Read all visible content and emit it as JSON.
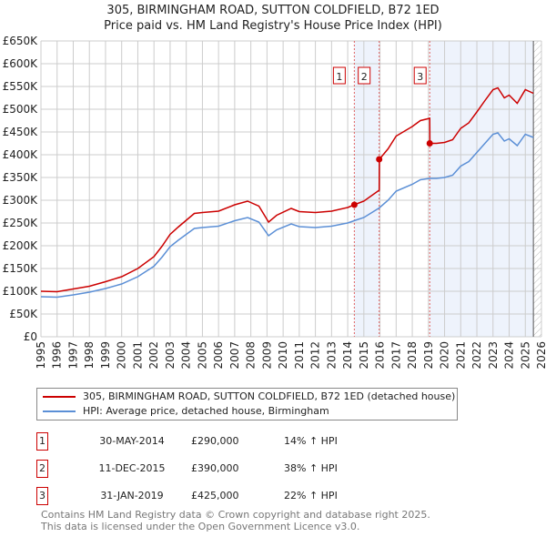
{
  "title": "305, BIRMINGHAM ROAD, SUTTON COLDFIELD, B72 1ED",
  "subtitle": "Price paid vs. HM Land Registry's House Price Index (HPI)",
  "chart_data": {
    "type": "line",
    "ylim": [
      0,
      650000
    ],
    "xlim": [
      1995,
      2026
    ],
    "yticks": [
      0,
      50000,
      100000,
      150000,
      200000,
      250000,
      300000,
      350000,
      400000,
      450000,
      500000,
      550000,
      600000,
      650000
    ],
    "ytick_labels": [
      "£0",
      "£50K",
      "£100K",
      "£150K",
      "£200K",
      "£250K",
      "£300K",
      "£350K",
      "£400K",
      "£450K",
      "£500K",
      "£550K",
      "£600K",
      "£650K"
    ],
    "xticks": [
      1995,
      1996,
      1997,
      1998,
      1999,
      2000,
      2001,
      2002,
      2003,
      2004,
      2005,
      2006,
      2007,
      2008,
      2009,
      2010,
      2011,
      2012,
      2013,
      2014,
      2015,
      2016,
      2017,
      2018,
      2019,
      2020,
      2021,
      2022,
      2023,
      2024,
      2025,
      2026
    ],
    "grid": true,
    "legend_placement": "below",
    "series": [
      {
        "name": "HPI: Average price, detached house, Birmingham",
        "color": "#5b8fd6",
        "x": [
          1995,
          1996,
          1997,
          1998,
          1999,
          2000,
          2001,
          2002,
          2002.5,
          2003,
          2003.5,
          2004,
          2004.5,
          2005,
          2006,
          2007,
          2007.8,
          2008.5,
          2009.1,
          2009.6,
          2010.5,
          2011,
          2012,
          2013,
          2014,
          2014.4,
          2015,
          2015.95,
          2016.5,
          2017,
          2018,
          2018.5,
          2019.08,
          2019.5,
          2020,
          2020.5,
          2021,
          2021.5,
          2022,
          2022.5,
          2023,
          2023.3,
          2023.7,
          2024,
          2024.5,
          2025,
          2025.5
        ],
        "y": [
          88000,
          87000,
          92000,
          98000,
          106000,
          116000,
          132000,
          155000,
          175000,
          198000,
          212000,
          225000,
          238000,
          240000,
          243000,
          255000,
          262000,
          252000,
          222000,
          235000,
          248000,
          242000,
          240000,
          243000,
          250000,
          255000,
          262000,
          283000,
          300000,
          320000,
          335000,
          345000,
          348000,
          348000,
          350000,
          355000,
          375000,
          385000,
          405000,
          425000,
          445000,
          448000,
          430000,
          435000,
          420000,
          445000,
          438000
        ]
      },
      {
        "name": "305, BIRMINGHAM ROAD, SUTTON COLDFIELD, B72 1ED (detached house)",
        "color": "#cc0000",
        "x": [
          1995,
          1996,
          1997,
          1998,
          1999,
          2000,
          2001,
          2002,
          2002.5,
          2003,
          2003.5,
          2004,
          2004.5,
          2005,
          2006,
          2007,
          2007.8,
          2008.5,
          2009.1,
          2009.6,
          2010.5,
          2011,
          2012,
          2013,
          2014,
          2014.4,
          2015,
          2015.95,
          2015.96,
          2016.5,
          2017,
          2018,
          2018.5,
          2019.08,
          2019.09,
          2019.5,
          2020,
          2020.5,
          2021,
          2021.5,
          2022,
          2022.5,
          2023,
          2023.3,
          2023.7,
          2024,
          2024.5,
          2025,
          2025.5
        ],
        "y": [
          100000,
          99000,
          105000,
          111000,
          121000,
          132000,
          150000,
          176000,
          199000,
          225000,
          241000,
          256000,
          271000,
          273000,
          276000,
          290000,
          298000,
          287000,
          252000,
          267000,
          282000,
          275000,
          273000,
          276000,
          284000,
          290000,
          298000,
          322000,
          390000,
          413000,
          441000,
          462000,
          475000,
          480000,
          425000,
          425000,
          427000,
          433000,
          458000,
          470000,
          494000,
          519000,
          543000,
          547000,
          525000,
          531000,
          513000,
          543000,
          535000
        ]
      }
    ],
    "sales": [
      {
        "label": "1",
        "x": 2014.41,
        "price": 290000,
        "date": "30-MAY-2014",
        "price_label": "£290,000",
        "hpi_label": "14% ↑ HPI"
      },
      {
        "label": "2",
        "x": 2015.95,
        "price": 390000,
        "date": "11-DEC-2015",
        "price_label": "£390,000",
        "hpi_label": "38% ↑ HPI"
      },
      {
        "label": "3",
        "x": 2019.08,
        "price": 425000,
        "date": "31-JAN-2019",
        "price_label": "£425,000",
        "hpi_label": "22% ↑ HPI"
      }
    ],
    "data_end": 2025.5
  },
  "legend": {
    "red": "305, BIRMINGHAM ROAD, SUTTON COLDFIELD, B72 1ED (detached house)",
    "blue": "HPI: Average price, detached house, Birmingham"
  },
  "footer": {
    "line1": "Contains HM Land Registry data © Crown copyright and database right 2025.",
    "line2": "This data is licensed under the Open Government Licence v3.0."
  }
}
